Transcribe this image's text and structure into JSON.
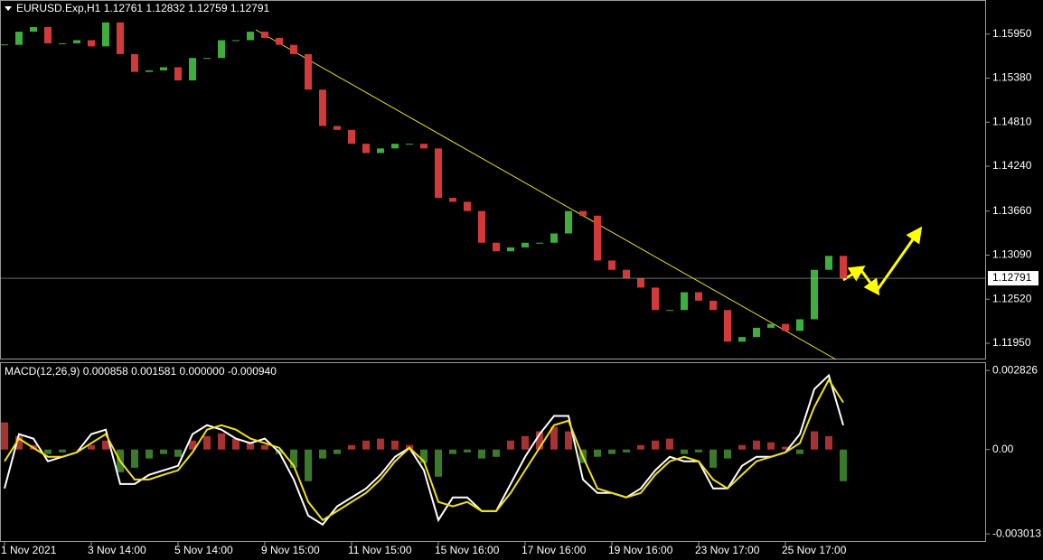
{
  "chart_data": [
    {
      "type": "candlestick",
      "title": "EURUSD.Exp,H1  1.12761 1.12832 1.12759 1.12791",
      "categories": [
        "1 Nov 2021",
        null,
        null,
        null,
        null,
        null,
        "3 Nov 14:00",
        null,
        null,
        null,
        null,
        null,
        "5 Nov 14:00",
        null,
        null,
        null,
        null,
        null,
        "9 Nov 15:00",
        null,
        null,
        null,
        null,
        null,
        "11 Nov 15:00",
        null,
        null,
        null,
        null,
        null,
        "15 Nov 16:00",
        null,
        null,
        null,
        null,
        null,
        "17 Nov 16:00",
        null,
        null,
        null,
        null,
        null,
        "19 Nov 16:00",
        null,
        null,
        null,
        null,
        null,
        "23 Nov 17:00",
        null,
        null,
        null,
        null,
        null,
        "25 Nov 17:00",
        null,
        null,
        null,
        null
      ],
      "values": [
        1.1581,
        1.1598,
        1.1604,
        1.1583,
        1.1583,
        1.1587,
        1.1579,
        1.161,
        1.1569,
        1.1546,
        1.1548,
        1.1552,
        1.1535,
        1.1564,
        1.1564,
        1.1587,
        1.1587,
        1.1598,
        1.159,
        1.1581,
        1.1569,
        1.1523,
        1.1476,
        1.1471,
        1.1453,
        1.1441,
        1.1447,
        1.1453,
        1.1453,
        1.1447,
        1.1383,
        1.1378,
        1.1366,
        1.1325,
        1.1314,
        1.1319,
        1.1325,
        1.1325,
        1.1337,
        1.1366,
        1.136,
        1.1302,
        1.129,
        1.1279,
        1.1267,
        1.1238,
        1.1238,
        1.1261,
        1.125,
        1.1238,
        1.1197,
        1.1203,
        1.1215,
        1.122,
        1.1211,
        1.1226,
        1.129,
        1.1308,
        1.1279
      ],
      "up_color": "#3fae3f",
      "down_color": "#d23a3a",
      "ylim": [
        1.1174,
        1.1639
      ],
      "yticks": [
        {
          "value": 1.1595,
          "label": "1.15950"
        },
        {
          "value": 1.1538,
          "label": "1.15380"
        },
        {
          "value": 1.1481,
          "label": "1.14810"
        },
        {
          "value": 1.1424,
          "label": "1.14240"
        },
        {
          "value": 1.1366,
          "label": "1.13660"
        },
        {
          "value": 1.1309,
          "label": "1.13090"
        },
        {
          "value": 1.1252,
          "label": "1.12520"
        },
        {
          "value": 1.1195,
          "label": "1.11950"
        }
      ],
      "last_price": {
        "value": 1.12791,
        "label": "1.12791"
      }
    },
    {
      "type": "macd",
      "title": "MACD(12,26,9) 0.000858 0.001581 0.000000 -0.000940",
      "values": [
        0.00097,
        0.00048,
        0.00016,
        -0.00016,
        -0.0001,
        0,
        0.00016,
        0.00032,
        -0.00081,
        -0.00065,
        -0.00032,
        -0.00016,
        -0.00026,
        0.00032,
        0.00048,
        0.00058,
        0.00039,
        0.00026,
        0.00016,
        -0.00016,
        -0.00065,
        -0.00113,
        -0.00032,
        -0.00016,
        0.00016,
        0.00032,
        0.00039,
        0.00032,
        0.00016,
        -0.00048,
        -0.00097,
        -0.00016,
        -0.0001,
        -0.00032,
        -0.00026,
        0.00032,
        0.00048,
        0.00065,
        0.00081,
        0.00065,
        -0.00048,
        -0.00026,
        -0.00016,
        -0.0001,
        0.00016,
        0.00032,
        0.00039,
        -0.00016,
        -0.0001,
        -0.00065,
        -0.00032,
        0.00016,
        0.00032,
        0.00026,
        0.0001,
        -0.00016,
        0.00065,
        0.00048,
        -0.00113
      ],
      "positive_color": "#a83232",
      "negative_color": "#3a7a2a",
      "series": [
        {
          "color": "#ffffff",
          "values": [
            -0.00139,
            0.00055,
            0.00039,
            -0.00042,
            -0.00026,
            -0.0001,
            0.00055,
            0.00071,
            -0.00123,
            -0.00123,
            -0.0009,
            -0.00074,
            -0.00058,
            0.00055,
            0.00087,
            0.00071,
            0.00039,
            0.00023,
            0.00039,
            -0.0001,
            -0.00107,
            -0.00236,
            -0.00268,
            -0.00203,
            -0.00171,
            -0.00139,
            -0.0009,
            -0.00026,
            6e-05,
            -0.00074,
            -0.00252,
            -0.00171,
            -0.00171,
            -0.0022,
            -0.0022,
            -0.00123,
            -0.00026,
            0.00055,
            0.0012,
            0.0012,
            -0.00107,
            -0.00155,
            -0.00155,
            -0.00171,
            -0.00139,
            -0.00074,
            -0.00026,
            -0.00042,
            -0.00042,
            -0.00139,
            -0.00139,
            -0.00058,
            -0.00026,
            -0.00026,
            -0.0001,
            0.00055,
            0.00216,
            0.00265,
            0.00087
          ]
        },
        {
          "color": "#f0e020",
          "values": [
            -0.00042,
            0.00039,
            6e-05,
            -0.00026,
            -0.00026,
            -0.0001,
            0.00023,
            0.00055,
            -0.00042,
            -0.00107,
            -0.00107,
            -0.0009,
            -0.00074,
            -0.0001,
            0.00071,
            0.00087,
            0.00071,
            0.00039,
            0.00023,
            6e-05,
            -0.00058,
            -0.00187,
            -0.00252,
            -0.0022,
            -0.00187,
            -0.00155,
            -0.00107,
            -0.00042,
            6e-05,
            -0.00042,
            -0.00187,
            -0.00203,
            -0.00187,
            -0.0022,
            -0.0022,
            -0.00155,
            -0.00074,
            6e-05,
            0.00087,
            0.00103,
            -0.00026,
            -0.00139,
            -0.00155,
            -0.00171,
            -0.00155,
            -0.0009,
            -0.00042,
            -0.00026,
            -0.00042,
            -0.00107,
            -0.00139,
            -0.0009,
            -0.00042,
            -0.00026,
            -0.0001,
            0.00023,
            0.00152,
            0.00249,
            0.00168
          ]
        }
      ],
      "ylim": [
        -0.0033,
        0.00312
      ],
      "yticks": [
        {
          "value": 0.002826,
          "label": "0.002826"
        },
        {
          "value": 0,
          "label": "0.00"
        },
        {
          "value": -0.003013,
          "label": "-0.003013"
        }
      ]
    }
  ]
}
